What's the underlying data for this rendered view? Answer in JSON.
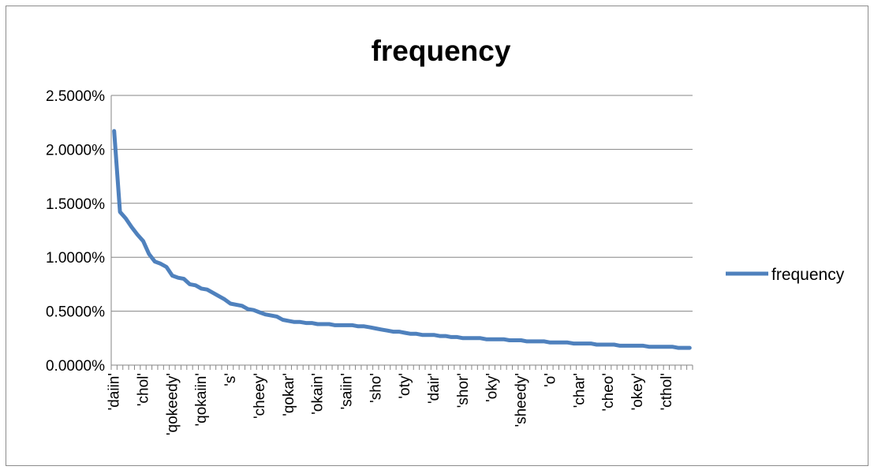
{
  "chart_data": {
    "type": "line",
    "title": "frequency",
    "xlabel": "",
    "ylabel": "",
    "ylim": [
      0,
      0.025
    ],
    "y_tick_values": [
      0,
      0.005,
      0.01,
      0.015,
      0.02,
      0.025
    ],
    "y_tick_labels": [
      "0.0000%",
      "0.5000%",
      "1.0000%",
      "1.5000%",
      "2.0000%",
      "2.5000%"
    ],
    "x_tick_labels": [
      "'daiin'",
      "'chol'",
      "'qokeedy'",
      "'qokaiin'",
      "'s'",
      "'cheey'",
      "'qokar'",
      "'okain'",
      "'saiin'",
      "'sho'",
      "'oty'",
      "'dair'",
      "'shor'",
      "'oky'",
      "'sheedy'",
      "'o'",
      "'char'",
      "'cheo'",
      "'okey'",
      "'cthol'"
    ],
    "x_label_every": 5,
    "grid": true,
    "legend": "right",
    "color": "#4F81BD",
    "series": [
      {
        "name": "frequency",
        "values": [
          0.0217,
          0.0142,
          0.0136,
          0.0128,
          0.0121,
          0.0115,
          0.0103,
          0.0096,
          0.0094,
          0.0091,
          0.0083,
          0.0081,
          0.008,
          0.0075,
          0.0074,
          0.0071,
          0.007,
          0.0067,
          0.0064,
          0.0061,
          0.0057,
          0.0056,
          0.0055,
          0.0052,
          0.0051,
          0.0049,
          0.0047,
          0.0046,
          0.0045,
          0.0042,
          0.0041,
          0.004,
          0.004,
          0.0039,
          0.0039,
          0.0038,
          0.0038,
          0.0038,
          0.0037,
          0.0037,
          0.0037,
          0.0037,
          0.0036,
          0.0036,
          0.0035,
          0.0034,
          0.0033,
          0.0032,
          0.0031,
          0.0031,
          0.003,
          0.0029,
          0.0029,
          0.0028,
          0.0028,
          0.0028,
          0.0027,
          0.0027,
          0.0026,
          0.0026,
          0.0025,
          0.0025,
          0.0025,
          0.0025,
          0.0024,
          0.0024,
          0.0024,
          0.0024,
          0.0023,
          0.0023,
          0.0023,
          0.0022,
          0.0022,
          0.0022,
          0.0022,
          0.0021,
          0.0021,
          0.0021,
          0.0021,
          0.002,
          0.002,
          0.002,
          0.002,
          0.0019,
          0.0019,
          0.0019,
          0.0019,
          0.0018,
          0.0018,
          0.0018,
          0.0018,
          0.0018,
          0.0017,
          0.0017,
          0.0017,
          0.0017,
          0.0017,
          0.0016,
          0.0016,
          0.0016
        ]
      }
    ]
  }
}
